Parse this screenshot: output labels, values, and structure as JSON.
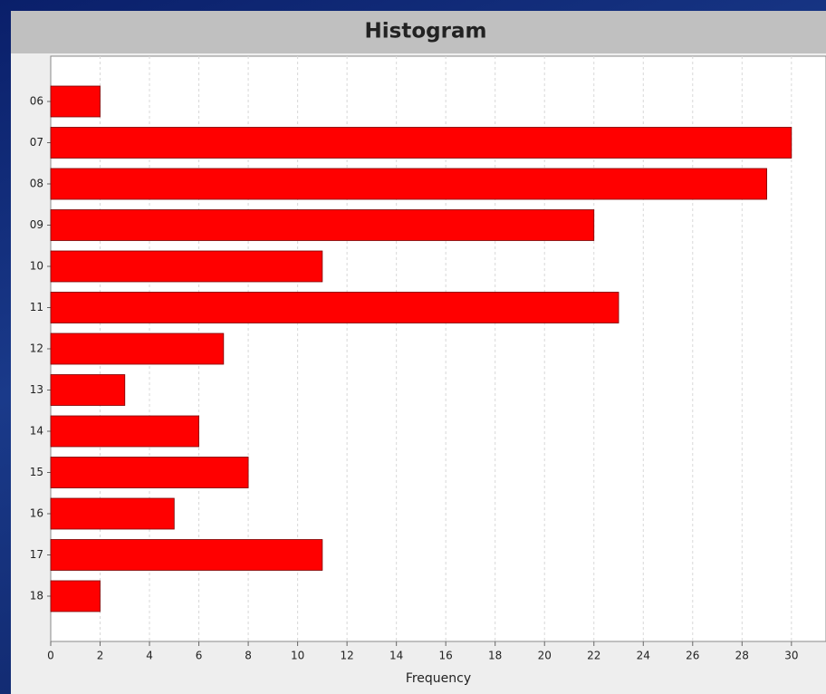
{
  "chart_data": {
    "type": "bar",
    "orientation": "horizontal",
    "title": "Histogram",
    "x_label": "Frequency",
    "categories": [
      "06",
      "07",
      "08",
      "09",
      "10",
      "11",
      "12",
      "13",
      "14",
      "15",
      "16",
      "17",
      "18"
    ],
    "values": [
      2,
      30,
      29,
      22,
      11,
      23,
      7,
      3,
      6,
      8,
      5,
      11,
      2
    ],
    "color": "#ff0000",
    "xlim": [
      0,
      31.4
    ],
    "xticks": [
      0,
      2,
      4,
      6,
      8,
      10,
      12,
      14,
      16,
      18,
      20,
      22,
      24,
      26,
      28,
      30
    ],
    "grid": true
  }
}
